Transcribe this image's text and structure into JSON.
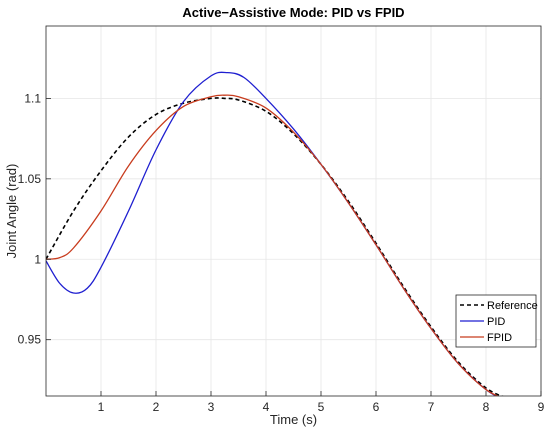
{
  "chart_data": {
    "type": "line",
    "title": "Active−Assistive Mode: PID vs FPID",
    "xlabel": "Time (s)",
    "ylabel": "Joint Angle (rad)",
    "xlim": [
      0,
      9
    ],
    "ylim": [
      0.915,
      1.145
    ],
    "x_ticks": [
      1,
      2,
      3,
      4,
      5,
      6,
      7,
      8,
      9
    ],
    "x_tick_labels": [
      "1",
      "2",
      "3",
      "4",
      "5",
      "6",
      "7",
      "8",
      "9"
    ],
    "y_ticks": [
      0.95,
      1.0,
      1.05,
      1.1
    ],
    "y_tick_labels": [
      "0.95",
      "1",
      "1.05",
      "1.1"
    ],
    "grid": true,
    "legend_position": "lower-right",
    "series": [
      {
        "name": "Reference",
        "color": "#000000",
        "style": "dashed",
        "x": [
          0,
          0.5,
          1,
          1.5,
          2,
          2.5,
          3,
          3.25,
          3.5,
          4,
          4.5,
          5,
          5.5,
          6,
          6.5,
          7,
          7.5,
          8,
          8.35
        ],
        "y": [
          1.0,
          1.03,
          1.055,
          1.076,
          1.09,
          1.097,
          1.1,
          1.1,
          1.099,
          1.092,
          1.078,
          1.059,
          1.036,
          1.01,
          0.983,
          0.958,
          0.936,
          0.92,
          0.914
        ]
      },
      {
        "name": "PID",
        "color": "#1f1fd0",
        "style": "solid",
        "x": [
          0,
          0.25,
          0.5,
          0.75,
          1,
          1.5,
          2,
          2.5,
          3,
          3.3,
          3.6,
          4,
          4.5,
          5,
          5.5,
          6,
          6.5,
          7,
          7.5,
          8,
          8.35
        ],
        "y": [
          0.999,
          0.985,
          0.979,
          0.982,
          0.995,
          1.03,
          1.068,
          1.098,
          1.114,
          1.116,
          1.113,
          1.1,
          1.081,
          1.059,
          1.035,
          1.009,
          0.982,
          0.957,
          0.935,
          0.919,
          0.912
        ]
      },
      {
        "name": "FPID",
        "color": "#c83c1e",
        "style": "solid",
        "x": [
          0,
          0.25,
          0.5,
          1,
          1.5,
          2,
          2.5,
          3,
          3.25,
          3.5,
          4,
          4.5,
          5,
          5.5,
          6,
          6.5,
          7,
          7.5,
          8,
          8.35
        ],
        "y": [
          1.0,
          1.001,
          1.007,
          1.03,
          1.058,
          1.08,
          1.095,
          1.101,
          1.102,
          1.101,
          1.094,
          1.079,
          1.059,
          1.035,
          1.009,
          0.982,
          0.957,
          0.935,
          0.919,
          0.913
        ]
      }
    ]
  }
}
